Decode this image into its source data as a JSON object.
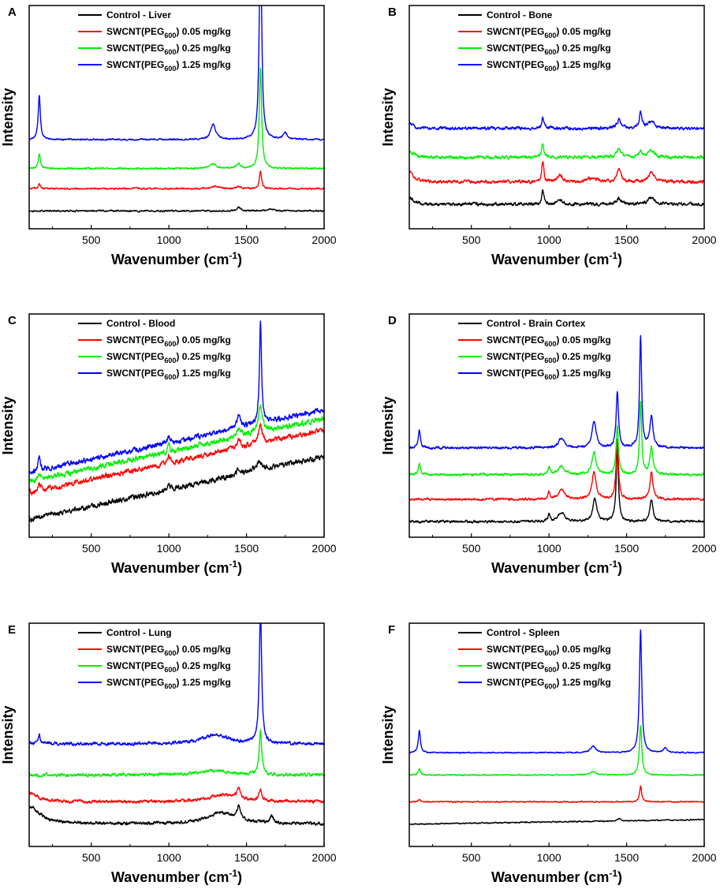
{
  "figure": {
    "xlabel_main": "Wavenumber (cm",
    "xlabel_sup": "-1",
    "xlabel_close": ")",
    "ylabel": "Intensity",
    "xticks": [
      500,
      1000,
      1500,
      2000
    ],
    "xlim": [
      100,
      2000
    ]
  },
  "legend": {
    "series": [
      {
        "prefix": "SWCNT(PEG",
        "sub": "600",
        "suffix": ") 0.05 mg/kg",
        "color": "#ff0000"
      },
      {
        "prefix": "SWCNT(PEG",
        "sub": "600",
        "suffix": ") 0.25 mg/kg",
        "color": "#00ee00"
      },
      {
        "prefix": "SWCNT(PEG",
        "sub": "600",
        "suffix": ") 1.25 mg/kg",
        "color": "#0000ff"
      }
    ],
    "control_color": "#000000"
  },
  "chart_data": [
    {
      "panel": "A",
      "control_label": "Control - Liver",
      "type": "line",
      "xlabel": "Wavenumber (cm-1)",
      "ylabel": "Intensity",
      "xlim": [
        100,
        2000
      ],
      "ylim": [
        0,
        100
      ],
      "noise": 0.4,
      "series": [
        {
          "name": "Control - Liver",
          "offset": 8,
          "slope": 0,
          "peaks": [
            [
              1450,
              1.5,
              15
            ],
            [
              1650,
              1,
              20
            ]
          ]
        },
        {
          "name": "SWCNT(PEG600) 0.05 mg/kg",
          "offset": 18,
          "slope": 0,
          "peaks": [
            [
              165,
              2,
              8
            ],
            [
              1590,
              8,
              8
            ],
            [
              1300,
              1,
              30
            ],
            [
              1450,
              1,
              15
            ]
          ]
        },
        {
          "name": "SWCNT(PEG600) 0.25 mg/kg",
          "offset": 27,
          "slope": 0,
          "peaks": [
            [
              165,
              7,
              8
            ],
            [
              1285,
              2,
              25
            ],
            [
              1450,
              2,
              15
            ],
            [
              1590,
              45,
              9
            ]
          ]
        },
        {
          "name": "SWCNT(PEG600) 1.25 mg/kg",
          "offset": 40,
          "slope": 0,
          "peaks": [
            [
              165,
              20,
              8
            ],
            [
              1285,
              7,
              18
            ],
            [
              1590,
              95,
              9
            ],
            [
              1750,
              3,
              15
            ]
          ]
        }
      ]
    },
    {
      "panel": "B",
      "control_label": "Control - Bone",
      "type": "line",
      "xlabel": "Wavenumber (cm-1)",
      "ylabel": "Intensity",
      "xlim": [
        100,
        2000
      ],
      "ylim": [
        0,
        100
      ],
      "noise": 0.8,
      "series": [
        {
          "name": "Control - Bone",
          "offset": 11,
          "slope": 0,
          "peaks": [
            [
              100,
              3,
              30
            ],
            [
              960,
              6,
              8
            ],
            [
              1070,
              2,
              20
            ],
            [
              1450,
              3,
              15
            ],
            [
              1660,
              3,
              25
            ]
          ]
        },
        {
          "name": "SWCNT(PEG600) 0.05 mg/kg",
          "offset": 21,
          "slope": 0,
          "peaks": [
            [
              100,
              5,
              30
            ],
            [
              960,
              9,
              8
            ],
            [
              1070,
              3,
              20
            ],
            [
              1280,
              2,
              30
            ],
            [
              1450,
              6,
              15
            ],
            [
              1660,
              4,
              25
            ]
          ]
        },
        {
          "name": "SWCNT(PEG600) 0.25 mg/kg",
          "offset": 32,
          "slope": 0,
          "peaks": [
            [
              100,
              3,
              30
            ],
            [
              960,
              6,
              8
            ],
            [
              1450,
              4,
              15
            ],
            [
              1590,
              3,
              10
            ],
            [
              1660,
              3,
              25
            ]
          ]
        },
        {
          "name": "SWCNT(PEG600) 1.25 mg/kg",
          "offset": 45,
          "slope": 0,
          "peaks": [
            [
              100,
              2,
              30
            ],
            [
              960,
              5,
              8
            ],
            [
              1450,
              4,
              15
            ],
            [
              1590,
              7,
              10
            ],
            [
              1660,
              3,
              25
            ]
          ]
        }
      ]
    },
    {
      "panel": "C",
      "control_label": "Control - Blood",
      "type": "line",
      "xlabel": "Wavenumber (cm-1)",
      "ylabel": "Intensity",
      "xlim": [
        100,
        2000
      ],
      "ylim": [
        0,
        100
      ],
      "noise": 1.3,
      "series": [
        {
          "name": "Control - Blood",
          "offset": 8,
          "slope": 28,
          "peaks": [
            [
              1000,
              3,
              8
            ],
            [
              1450,
              3,
              15
            ],
            [
              1580,
              4,
              25
            ]
          ]
        },
        {
          "name": "SWCNT(PEG600) 0.05 mg/kg",
          "offset": 20,
          "slope": 28,
          "peaks": [
            [
              165,
              3,
              8
            ],
            [
              1000,
              3,
              8
            ],
            [
              1450,
              4,
              15
            ],
            [
              1590,
              8,
              15
            ]
          ]
        },
        {
          "name": "SWCNT(PEG600) 0.25 mg/kg",
          "offset": 25,
          "slope": 28,
          "peaks": [
            [
              165,
              3,
              8
            ],
            [
              1000,
              3,
              8
            ],
            [
              1450,
              4,
              15
            ],
            [
              1590,
              12,
              15
            ]
          ]
        },
        {
          "name": "SWCNT(PEG600) 1.25 mg/kg",
          "offset": 29,
          "slope": 28,
          "peaks": [
            [
              165,
              6,
              8
            ],
            [
              1000,
              3,
              8
            ],
            [
              1450,
              5,
              15
            ],
            [
              1590,
              45,
              8
            ]
          ]
        }
      ]
    },
    {
      "panel": "D",
      "control_label": "Control - Brain Cortex",
      "type": "line",
      "xlabel": "Wavenumber (cm-1)",
      "ylabel": "Intensity",
      "xlim": [
        100,
        2000
      ],
      "ylim": [
        0,
        100
      ],
      "noise": 0.6,
      "series": [
        {
          "name": "Control - Brain Cortex",
          "offset": 7,
          "slope": 0,
          "peaks": [
            [
              1000,
              3,
              8
            ],
            [
              1080,
              4,
              25
            ],
            [
              1295,
              10,
              16
            ],
            [
              1440,
              32,
              9
            ],
            [
              1660,
              10,
              12
            ]
          ]
        },
        {
          "name": "SWCNT(PEG600) 0.05 mg/kg",
          "offset": 17,
          "slope": 0,
          "peaks": [
            [
              1000,
              3,
              8
            ],
            [
              1080,
              4,
              25
            ],
            [
              1290,
              12,
              16
            ],
            [
              1440,
              27,
              9
            ],
            [
              1660,
              12,
              12
            ]
          ]
        },
        {
          "name": "SWCNT(PEG600) 0.25 mg/kg",
          "offset": 28,
          "slope": 0,
          "peaks": [
            [
              165,
              5,
              8
            ],
            [
              1000,
              3,
              8
            ],
            [
              1080,
              4,
              25
            ],
            [
              1290,
              10,
              16
            ],
            [
              1440,
              22,
              9
            ],
            [
              1590,
              33,
              8
            ],
            [
              1660,
              12,
              12
            ]
          ]
        },
        {
          "name": "SWCNT(PEG600) 1.25 mg/kg",
          "offset": 40,
          "slope": 0,
          "peaks": [
            [
              165,
              8,
              8
            ],
            [
              1080,
              4,
              25
            ],
            [
              1290,
              12,
              16
            ],
            [
              1440,
              25,
              9
            ],
            [
              1590,
              50,
              8
            ],
            [
              1660,
              14,
              12
            ]
          ]
        }
      ]
    },
    {
      "panel": "E",
      "control_label": "Control - Lung",
      "type": "line",
      "xlabel": "Wavenumber (cm-1)",
      "ylabel": "Intensity",
      "xlim": [
        100,
        2000
      ],
      "ylim": [
        0,
        100
      ],
      "noise": 0.8,
      "series": [
        {
          "name": "Control - Lung",
          "offset": 10,
          "slope": 0,
          "peaks": [
            [
              100,
              8,
              80
            ],
            [
              1340,
              5,
              120
            ],
            [
              1450,
              6,
              12
            ],
            [
              1660,
              3,
              15
            ]
          ]
        },
        {
          "name": "SWCNT(PEG600) 0.05 mg/kg",
          "offset": 20,
          "slope": 0,
          "peaks": [
            [
              100,
              4,
              60
            ],
            [
              1350,
              3,
              120
            ],
            [
              1450,
              5,
              12
            ],
            [
              1590,
              5,
              10
            ]
          ]
        },
        {
          "name": "SWCNT(PEG600) 0.25 mg/kg",
          "offset": 32,
          "slope": 0,
          "peaks": [
            [
              1300,
              2,
              120
            ],
            [
              1590,
              20,
              9
            ]
          ]
        },
        {
          "name": "SWCNT(PEG600) 1.25 mg/kg",
          "offset": 46,
          "slope": 0,
          "peaks": [
            [
              165,
              4,
              8
            ],
            [
              1300,
              4,
              100
            ],
            [
              1590,
              60,
              9
            ]
          ]
        }
      ]
    },
    {
      "panel": "F",
      "control_label": "Control - Spleen",
      "type": "line",
      "xlabel": "Wavenumber (cm-1)",
      "ylabel": "Intensity",
      "xlim": [
        100,
        2000
      ],
      "ylim": [
        0,
        100
      ],
      "noise": 0.3,
      "series": [
        {
          "name": "Control - Spleen",
          "offset": 10,
          "slope": 2,
          "peaks": [
            [
              1450,
              1,
              15
            ]
          ]
        },
        {
          "name": "SWCNT(PEG600) 0.05 mg/kg",
          "offset": 20,
          "slope": 0,
          "peaks": [
            [
              165,
              1,
              8
            ],
            [
              1590,
              7,
              8
            ]
          ]
        },
        {
          "name": "SWCNT(PEG600) 0.25 mg/kg",
          "offset": 32,
          "slope": 0,
          "peaks": [
            [
              165,
              3,
              8
            ],
            [
              1285,
              1.5,
              25
            ],
            [
              1590,
              22,
              9
            ]
          ]
        },
        {
          "name": "SWCNT(PEG600) 1.25 mg/kg",
          "offset": 42,
          "slope": 0,
          "peaks": [
            [
              165,
              10,
              8
            ],
            [
              1285,
              3,
              20
            ],
            [
              1590,
              55,
              9
            ],
            [
              1750,
              2,
              15
            ]
          ]
        }
      ]
    }
  ]
}
